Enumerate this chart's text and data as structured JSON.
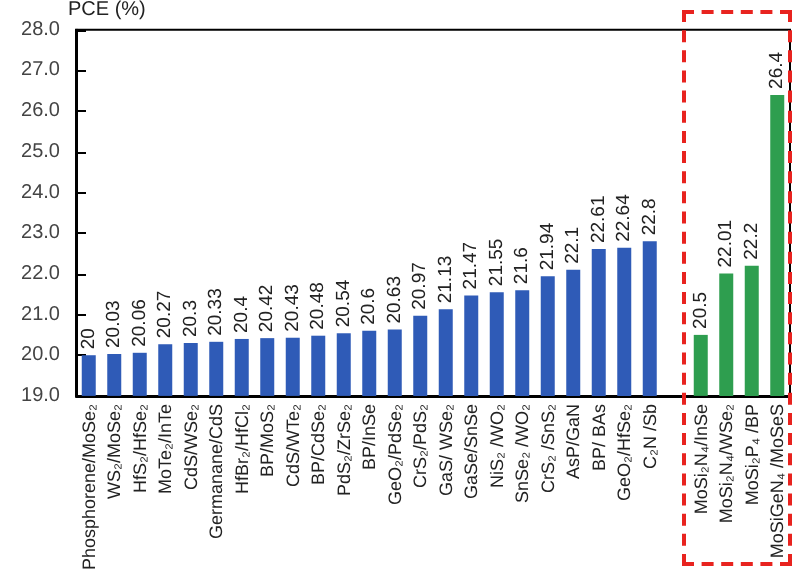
{
  "chart_data": {
    "type": "bar",
    "ylabel": "PCE (%)",
    "categories": [
      "Phosphorene/MoSe₂",
      "WS₂/MoSe₂",
      "HfS₂/HfSe₂",
      "MoTe₂/InTe",
      "CdS/WSe₂",
      "Germanane/CdS",
      "HfBr₂/HfCl₂",
      "BP/MoS₂",
      "CdS/WTe₂",
      "BP/CdSe₂",
      "PdS₂/ZrSe₂",
      "BP/InSe",
      "GeO₂/PdSe₂",
      "CrS₂/PdS₂",
      "GaS/ WSe₂",
      "GaSe/SnSe",
      "NiS₂ /WO₂",
      "SnSe₂ /WO₂",
      "CrS₂ /SnS₂",
      "AsP/GaN",
      "BP/ BAs",
      "GeO₂/HfSe₂",
      "C₂N /Sb",
      null,
      "MoSi₂N₄/InSe",
      "MoSi₂N₄/WSe₂",
      "MoSi₂P₄ /BP",
      "MoSiGeN₄ /MoSeS"
    ],
    "values": [
      20,
      20.03,
      20.06,
      20.27,
      20.3,
      20.33,
      20.4,
      20.42,
      20.43,
      20.48,
      20.54,
      20.6,
      20.63,
      20.97,
      21.13,
      21.47,
      21.55,
      21.6,
      21.94,
      22.1,
      22.61,
      22.64,
      22.8,
      null,
      20.5,
      22.01,
      22.2,
      26.4
    ],
    "colors": [
      "#2f5bb7",
      "#2f5bb7",
      "#2f5bb7",
      "#2f5bb7",
      "#2f5bb7",
      "#2f5bb7",
      "#2f5bb7",
      "#2f5bb7",
      "#2f5bb7",
      "#2f5bb7",
      "#2f5bb7",
      "#2f5bb7",
      "#2f5bb7",
      "#2f5bb7",
      "#2f5bb7",
      "#2f5bb7",
      "#2f5bb7",
      "#2f5bb7",
      "#2f5bb7",
      "#2f5bb7",
      "#2f5bb7",
      "#2f5bb7",
      "#2f5bb7",
      null,
      "#2e9e4f",
      "#2e9e4f",
      "#2e9e4f",
      "#2e9e4f"
    ],
    "data_labels": true,
    "grid": false,
    "ylim": [
      19,
      28
    ],
    "yticks": [
      {
        "value": 19,
        "label": "19.0"
      },
      {
        "value": 20,
        "label": "20.0"
      },
      {
        "value": 21,
        "label": "21.0"
      },
      {
        "value": 22,
        "label": "22.0"
      },
      {
        "value": 23,
        "label": "23.0"
      },
      {
        "value": 24,
        "label": "24.0"
      },
      {
        "value": 25,
        "label": "25.0"
      },
      {
        "value": 26,
        "label": "26.0"
      },
      {
        "value": 27,
        "label": "27.0"
      },
      {
        "value": 28,
        "label": "28.0"
      }
    ]
  }
}
